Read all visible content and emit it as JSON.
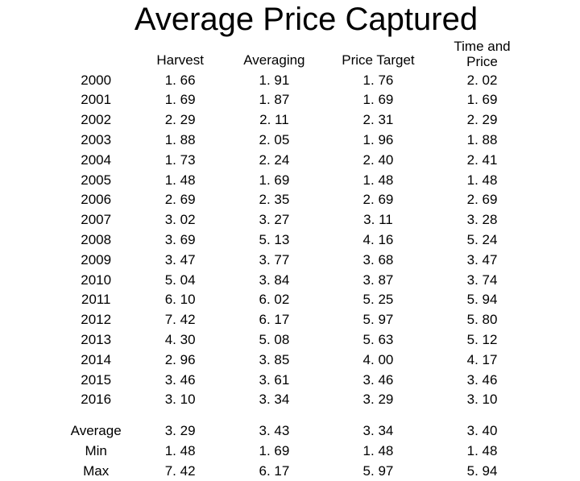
{
  "title": "Average Price Captured",
  "table": {
    "columns": [
      "",
      "Harvest",
      "Averaging",
      "Price Target",
      "Time and Price"
    ],
    "rows": [
      [
        "2000",
        "1. 66",
        "1. 91",
        "1. 76",
        "2. 02"
      ],
      [
        "2001",
        "1. 69",
        "1. 87",
        "1. 69",
        "1. 69"
      ],
      [
        "2002",
        "2. 29",
        "2. 11",
        "2. 31",
        "2. 29"
      ],
      [
        "2003",
        "1. 88",
        "2. 05",
        "1. 96",
        "1. 88"
      ],
      [
        "2004",
        "1. 73",
        "2. 24",
        "2. 40",
        "2. 41"
      ],
      [
        "2005",
        "1. 48",
        "1. 69",
        "1. 48",
        "1. 48"
      ],
      [
        "2006",
        "2. 69",
        "2. 35",
        "2. 69",
        "2. 69"
      ],
      [
        "2007",
        "3. 02",
        "3. 27",
        "3. 11",
        "3. 28"
      ],
      [
        "2008",
        "3. 69",
        "5. 13",
        "4. 16",
        "5. 24"
      ],
      [
        "2009",
        "3. 47",
        "3. 77",
        "3. 68",
        "3. 47"
      ],
      [
        "2010",
        "5. 04",
        "3. 84",
        "3. 87",
        "3. 74"
      ],
      [
        "2011",
        "6. 10",
        "6. 02",
        "5. 25",
        "5. 94"
      ],
      [
        "2012",
        "7. 42",
        "6. 17",
        "5. 97",
        "5. 80"
      ],
      [
        "2013",
        "4. 30",
        "5. 08",
        "5. 63",
        "5. 12"
      ],
      [
        "2014",
        "2. 96",
        "3. 85",
        "4. 00",
        "4. 17"
      ],
      [
        "2015",
        "3. 46",
        "3. 61",
        "3. 46",
        "3. 46"
      ],
      [
        "2016",
        "3. 10",
        "3. 34",
        "3. 29",
        "3. 10"
      ]
    ],
    "summary": [
      [
        "Average",
        "3. 29",
        "3. 43",
        "3. 34",
        "3. 40"
      ],
      [
        "Min",
        "1. 48",
        "1. 69",
        "1. 48",
        "1. 48"
      ],
      [
        "Max",
        "7. 42",
        "6. 17",
        "5. 97",
        "5. 94"
      ]
    ]
  },
  "style": {
    "background_color": "#ffffff",
    "text_color": "#000000",
    "title_fontsize": 40,
    "body_fontsize": 17,
    "font_family": "Arial"
  }
}
